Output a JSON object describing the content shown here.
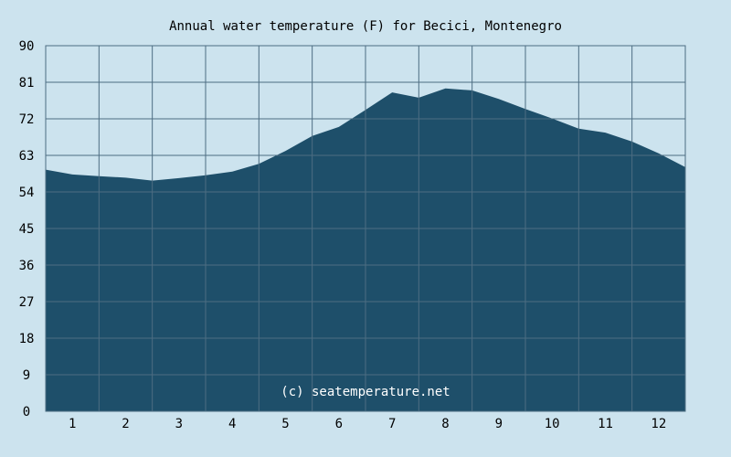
{
  "chart_data": {
    "type": "area",
    "title": "Annual water temperature (F) for Becici, Montenegro",
    "watermark": "(c) seatemperature.net",
    "ylim": [
      0,
      90
    ],
    "yticks": [
      "0",
      "9",
      "18",
      "27",
      "36",
      "45",
      "54",
      "63",
      "72",
      "81",
      "90"
    ],
    "xlim": [
      0.5,
      12.5
    ],
    "xticks": [
      "1",
      "2",
      "3",
      "4",
      "5",
      "6",
      "7",
      "8",
      "9",
      "10",
      "11",
      "12"
    ],
    "grid": true,
    "colors": {
      "background": "#cce3ee",
      "fill": "#1e4f6a",
      "grid": "#4d6d82"
    },
    "series": [
      {
        "x": [
          0.5,
          1.0,
          1.5,
          2.0,
          2.5,
          3.0,
          3.5,
          4.0,
          4.5,
          5.0,
          5.5,
          6.0,
          6.5,
          7.0,
          7.5,
          8.0,
          8.5,
          9.0,
          9.5,
          10.0,
          10.5,
          11.0,
          11.5,
          12.0,
          12.5
        ],
        "values": [
          59.5,
          58.3,
          57.9,
          57.5,
          56.8,
          57.4,
          58.1,
          59.0,
          60.9,
          64.1,
          67.8,
          70.0,
          74.2,
          78.5,
          77.2,
          79.5,
          79.0,
          76.9,
          74.4,
          72.1,
          69.6,
          68.6,
          66.4,
          63.5,
          60.1
        ]
      }
    ]
  }
}
